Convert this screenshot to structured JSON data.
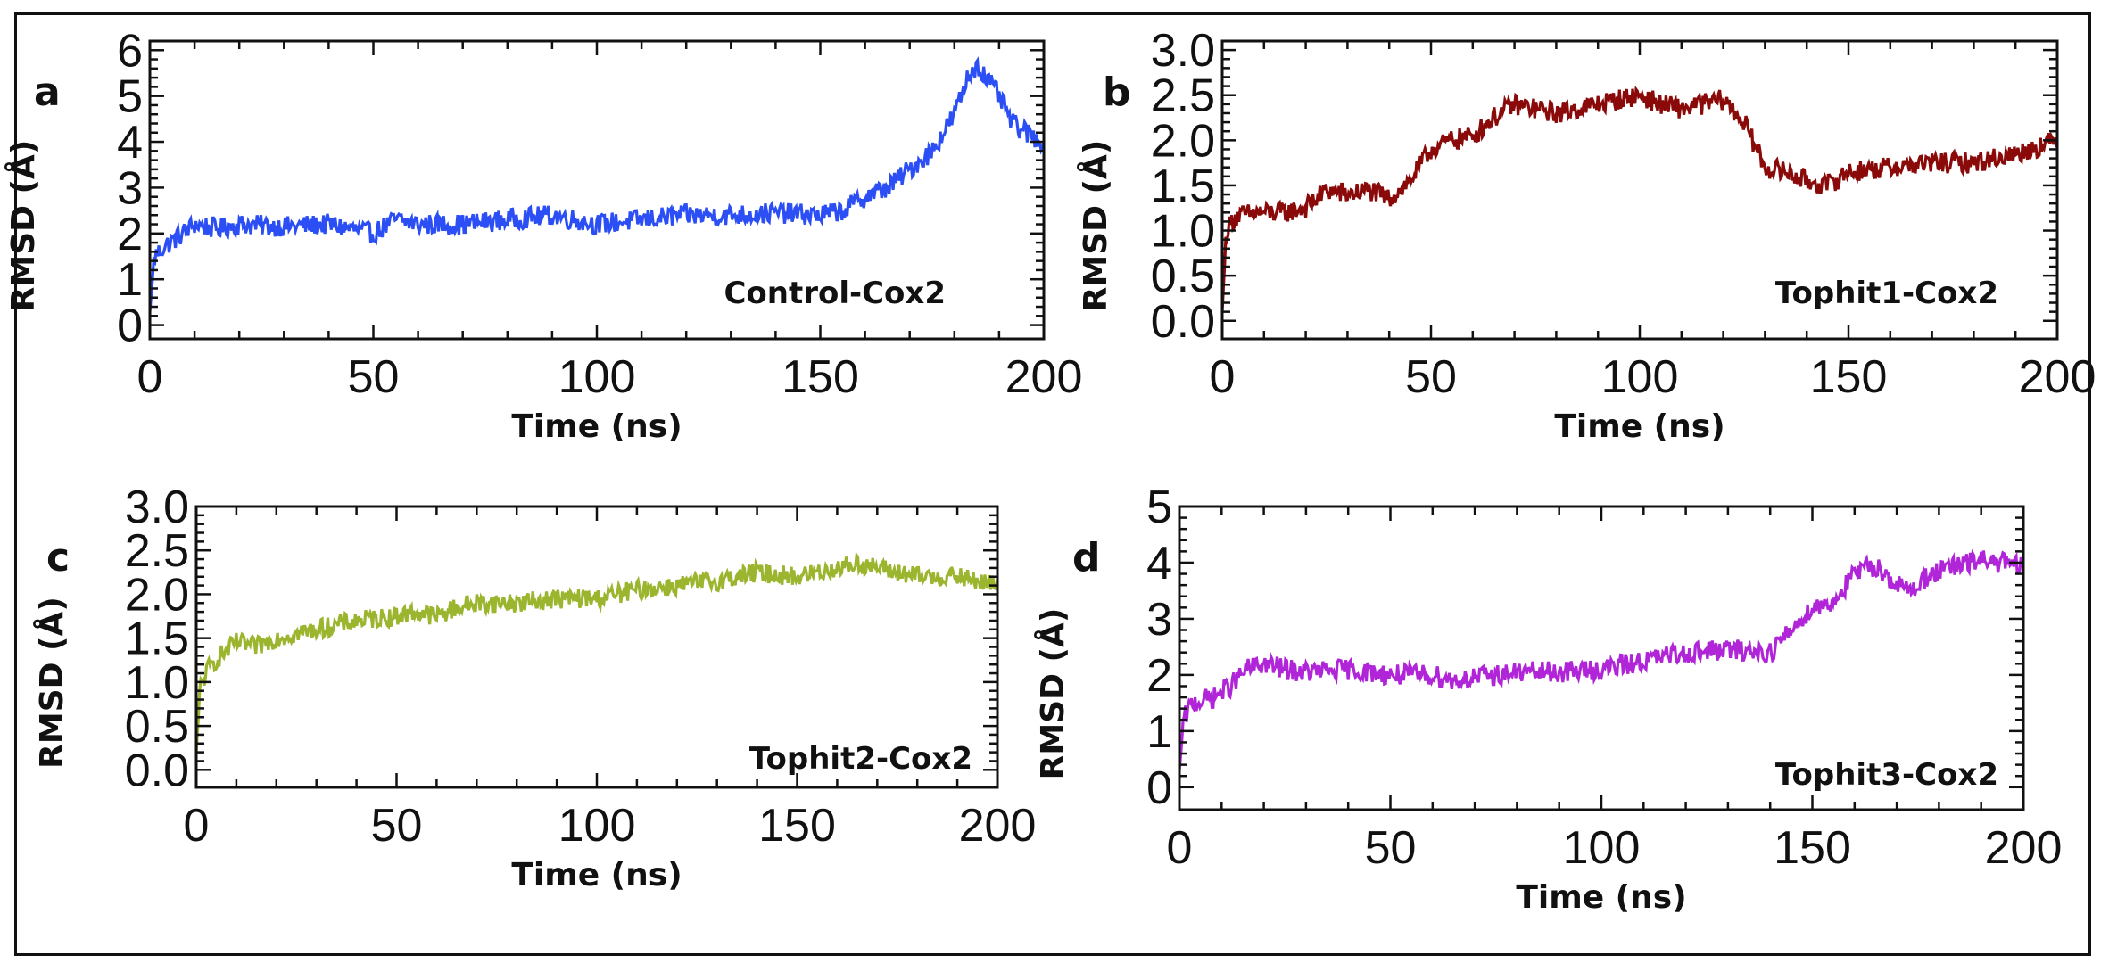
{
  "chart_data": [
    {
      "type": "line",
      "panel_label": "a",
      "annotation": "Control-Cox2",
      "xlabel": "Time (ns)",
      "ylabel": "RMSD (Å)",
      "xlim": [
        0,
        200
      ],
      "ylim": [
        -0.3,
        6.2
      ],
      "xticks": [
        0,
        50,
        100,
        150,
        200
      ],
      "yticks": [
        0,
        1,
        2,
        3,
        4,
        5,
        6
      ],
      "ytick_labels": [
        "0",
        "1",
        "2",
        "3",
        "4",
        "5",
        "6"
      ],
      "color": "#2b4ff5",
      "series": [
        {
          "name": "Control-Cox2",
          "x": [
            0,
            1,
            3,
            6,
            10,
            15,
            20,
            30,
            40,
            45,
            50,
            55,
            60,
            70,
            80,
            90,
            95,
            100,
            110,
            120,
            130,
            140,
            150,
            155,
            160,
            165,
            170,
            175,
            180,
            183,
            185,
            187,
            190,
            193,
            196,
            200
          ],
          "y": [
            0.3,
            1.5,
            1.7,
            1.9,
            2.2,
            2.1,
            2.2,
            2.15,
            2.2,
            2.1,
            2.0,
            2.3,
            2.2,
            2.2,
            2.3,
            2.4,
            2.3,
            2.2,
            2.3,
            2.4,
            2.4,
            2.45,
            2.4,
            2.5,
            2.8,
            3.0,
            3.4,
            3.8,
            4.6,
            5.4,
            5.7,
            5.4,
            5.0,
            4.4,
            4.2,
            4.0
          ]
        }
      ]
    },
    {
      "type": "line",
      "panel_label": "b",
      "annotation": "Tophit1-Cox2",
      "xlabel": "Time (ns)",
      "ylabel": "RMSD (Å)",
      "xlim": [
        0,
        200
      ],
      "ylim": [
        -0.2,
        3.1
      ],
      "xticks": [
        0,
        50,
        100,
        150,
        200
      ],
      "yticks": [
        0,
        0.5,
        1,
        1.5,
        2,
        2.5,
        3
      ],
      "ytick_labels": [
        "0.0",
        "0.5",
        "1.0",
        "1.5",
        "2.0",
        "2.5",
        "3.0"
      ],
      "color": "#8a0a0a",
      "series": [
        {
          "name": "Tophit1-Cox2",
          "x": [
            0,
            1,
            3,
            8,
            15,
            20,
            25,
            30,
            35,
            40,
            45,
            50,
            55,
            60,
            65,
            70,
            75,
            80,
            85,
            90,
            95,
            100,
            105,
            110,
            115,
            120,
            125,
            130,
            135,
            140,
            145,
            150,
            160,
            170,
            180,
            190,
            200
          ],
          "y": [
            0.1,
            1.0,
            1.15,
            1.2,
            1.2,
            1.25,
            1.45,
            1.4,
            1.45,
            1.35,
            1.55,
            1.9,
            2.0,
            2.05,
            2.25,
            2.4,
            2.35,
            2.3,
            2.35,
            2.4,
            2.45,
            2.5,
            2.4,
            2.35,
            2.4,
            2.45,
            2.2,
            1.7,
            1.65,
            1.55,
            1.5,
            1.65,
            1.7,
            1.75,
            1.75,
            1.85,
            2.0
          ]
        }
      ]
    },
    {
      "type": "line",
      "panel_label": "c",
      "annotation": "Tophit2-Cox2",
      "xlabel": "Time (ns)",
      "ylabel": "RMSD (Å)",
      "xlim": [
        0,
        200
      ],
      "ylim": [
        -0.2,
        3.0
      ],
      "xticks": [
        0,
        50,
        100,
        150,
        200
      ],
      "yticks": [
        0,
        0.5,
        1,
        1.5,
        2,
        2.5,
        3
      ],
      "ytick_labels": [
        "0.0",
        "0.5",
        "1.0",
        "1.5",
        "2.0",
        "2.5",
        "3.0"
      ],
      "color": "#9bb52e",
      "series": [
        {
          "name": "Tophit2-Cox2",
          "x": [
            0,
            1,
            3,
            6,
            10,
            15,
            20,
            30,
            40,
            50,
            55,
            60,
            65,
            70,
            80,
            90,
            100,
            110,
            120,
            130,
            140,
            150,
            160,
            165,
            170,
            180,
            190,
            195,
            200
          ],
          "y": [
            0.2,
            0.95,
            1.15,
            1.3,
            1.45,
            1.4,
            1.5,
            1.6,
            1.7,
            1.75,
            1.8,
            1.75,
            1.85,
            1.9,
            1.9,
            1.95,
            1.95,
            2.05,
            2.1,
            2.15,
            2.25,
            2.2,
            2.3,
            2.35,
            2.3,
            2.2,
            2.2,
            2.15,
            2.1
          ]
        }
      ]
    },
    {
      "type": "line",
      "panel_label": "d",
      "annotation": "Tophit3-Cox2",
      "xlabel": "Time (ns)",
      "ylabel": "RMSD (Å)",
      "xlim": [
        0,
        200
      ],
      "ylim": [
        -0.4,
        5.0
      ],
      "xticks": [
        0,
        50,
        100,
        150,
        200
      ],
      "yticks": [
        0,
        1,
        2,
        3,
        4,
        5
      ],
      "ytick_labels": [
        "0",
        "1",
        "2",
        "3",
        "4",
        "5"
      ],
      "color": "#b025d8",
      "series": [
        {
          "name": "Tophit3-Cox2",
          "x": [
            0,
            1,
            3,
            8,
            12,
            16,
            20,
            25,
            30,
            40,
            50,
            60,
            65,
            70,
            80,
            90,
            100,
            110,
            120,
            130,
            140,
            145,
            150,
            155,
            160,
            163,
            165,
            170,
            173,
            178,
            185,
            190,
            195,
            200
          ],
          "y": [
            0.3,
            1.2,
            1.5,
            1.6,
            1.8,
            2.1,
            2.2,
            2.1,
            2.05,
            2.1,
            2.0,
            2.0,
            1.9,
            1.95,
            2.05,
            2.05,
            2.1,
            2.25,
            2.4,
            2.45,
            2.4,
            2.8,
            3.2,
            3.3,
            3.8,
            3.9,
            3.95,
            3.6,
            3.5,
            3.8,
            3.95,
            4.05,
            4.0,
            3.9
          ]
        }
      ]
    }
  ]
}
